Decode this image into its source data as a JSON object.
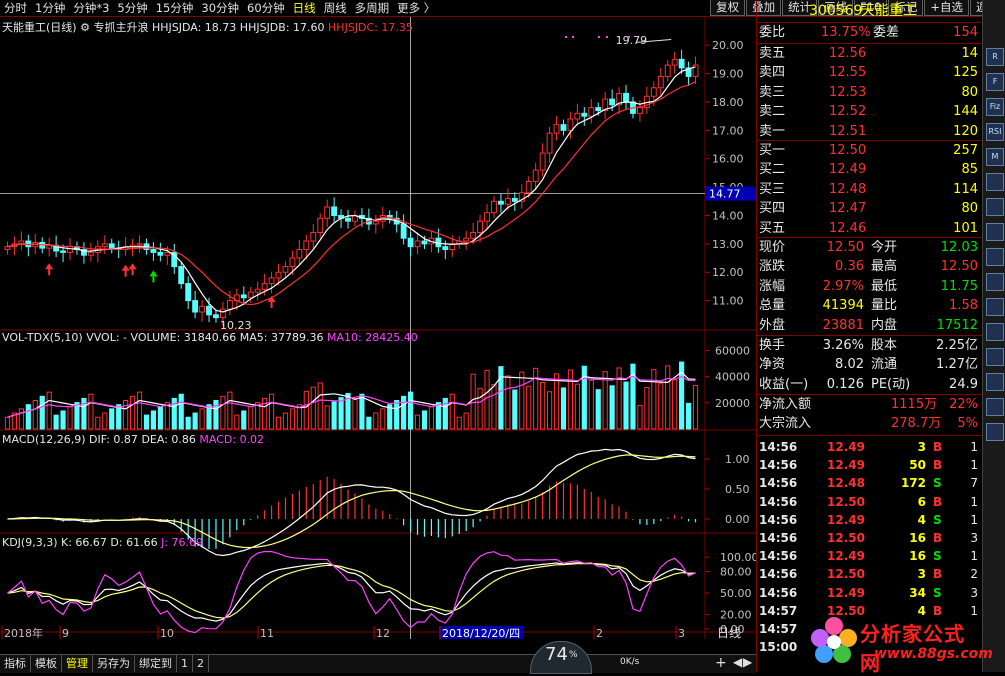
{
  "toolbar": {
    "periods": [
      "分时",
      "1分钟",
      "分钟*3",
      "5分钟",
      "15分钟",
      "30分钟",
      "60分钟",
      "日线",
      "周线",
      "多周期",
      "更多 〉"
    ],
    "active_period": "日线",
    "tools": [
      "复权",
      "叠加",
      "统计",
      "画线",
      "F10",
      "标记",
      "+自选",
      "返回"
    ]
  },
  "main_legend": {
    "name": "天能重工(日线)",
    "indicator": "专抓主升浪",
    "a": "HHJSJDA: 18.73",
    "b": "HHJSJDB: 17.60",
    "c": "HHJSJDC: 17.35"
  },
  "price_axis": [
    "20.00",
    "19.00",
    "18.00",
    "17.00",
    "16.00",
    "15.00",
    "14.00",
    "13.00",
    "12.00",
    "11.00"
  ],
  "crosshair_price": "14.77",
  "annotations": {
    "high": "19.79",
    "low": "10.23"
  },
  "vol_legend": {
    "name": "VOL-TDX(5,10)",
    "wol": "VVOL: -",
    "volume": "VOLUME: 31840.66",
    "ma5": "MA5: 37789.36",
    "ma10": "MA10: 28425.40"
  },
  "vol_axis": [
    "60000",
    "40000",
    "20000"
  ],
  "macd_legend": {
    "name": "MACD(12,26,9)",
    "dif": "DIF: 0.87",
    "dea": "DEA: 0.86",
    "macd": "MACD: 0.02"
  },
  "macd_axis": [
    "1.00",
    "0.50",
    "0.00"
  ],
  "kdj_legend": {
    "name": "KDJ(9,3,3)",
    "k": "K: 66.67",
    "d": "D: 61.66",
    "j": "J: 76.69"
  },
  "kdj_axis": [
    "100.00",
    "80.00",
    "50.00",
    "20.00",
    "0.00"
  ],
  "time_axis": [
    "2018年",
    "9",
    "10",
    "11",
    "12",
    "2018/12/20/四",
    "2",
    "3"
  ],
  "period_label": "日线",
  "bottom_tabs": [
    "指标",
    "模板",
    "管理",
    "另存为",
    "绑定到",
    "1",
    "2"
  ],
  "speed": {
    "value": "74",
    "unit": "%",
    "rate": "0K/s"
  },
  "quote": {
    "code": "300569",
    "name": "天能重工",
    "weibi_label": "委比",
    "weibi": "13.75%",
    "weicha_label": "委差",
    "weicha": "154",
    "asks": [
      {
        "label": "卖五",
        "price": "12.56",
        "vol": "14"
      },
      {
        "label": "卖四",
        "price": "12.55",
        "vol": "125"
      },
      {
        "label": "卖三",
        "price": "12.53",
        "vol": "80"
      },
      {
        "label": "卖二",
        "price": "12.52",
        "vol": "144"
      },
      {
        "label": "卖一",
        "price": "12.51",
        "vol": "120"
      }
    ],
    "bids": [
      {
        "label": "买一",
        "price": "12.50",
        "vol": "257"
      },
      {
        "label": "买二",
        "price": "12.49",
        "vol": "85"
      },
      {
        "label": "买三",
        "price": "12.48",
        "vol": "114"
      },
      {
        "label": "买四",
        "price": "12.47",
        "vol": "80"
      },
      {
        "label": "买五",
        "price": "12.46",
        "vol": "101"
      }
    ],
    "stats": [
      {
        "l1": "现价",
        "v1": "12.50",
        "c1": "red",
        "l2": "今开",
        "v2": "12.03",
        "c2": "grn"
      },
      {
        "l1": "涨跌",
        "v1": "0.36",
        "c1": "red",
        "l2": "最高",
        "v2": "12.50",
        "c2": "red"
      },
      {
        "l1": "涨幅",
        "v1": "2.97%",
        "c1": "red",
        "l2": "最低",
        "v2": "11.75",
        "c2": "grn"
      },
      {
        "l1": "总量",
        "v1": "41394",
        "c1": "yel",
        "l2": "量比",
        "v2": "1.58",
        "c2": "red"
      },
      {
        "l1": "外盘",
        "v1": "23881",
        "c1": "red",
        "l2": "内盘",
        "v2": "17512",
        "c2": "grn"
      }
    ],
    "stats2": [
      {
        "l1": "换手",
        "v1": "3.26%",
        "l2": "股本",
        "v2": "2.25亿"
      },
      {
        "l1": "净资",
        "v1": "8.02",
        "l2": "流通",
        "v2": "1.27亿"
      },
      {
        "l1": "收益(一)",
        "v1": "0.126",
        "l2": "PE(动)",
        "v2": "24.9"
      }
    ],
    "flows": [
      {
        "l": "净流入额",
        "v": "1115万",
        "p": "22%"
      },
      {
        "l": "大宗流入",
        "v": "278.7万",
        "p": "5%"
      }
    ]
  },
  "ticks": [
    {
      "t": "14:56",
      "p": "12.49",
      "v": "3",
      "s": "B",
      "n": "1"
    },
    {
      "t": "14:56",
      "p": "12.49",
      "v": "50",
      "s": "B",
      "n": "1"
    },
    {
      "t": "14:56",
      "p": "12.48",
      "v": "172",
      "s": "S",
      "n": "7"
    },
    {
      "t": "14:56",
      "p": "12.50",
      "v": "6",
      "s": "B",
      "n": "1"
    },
    {
      "t": "14:56",
      "p": "12.49",
      "v": "4",
      "s": "S",
      "n": "1"
    },
    {
      "t": "14:56",
      "p": "12.50",
      "v": "16",
      "s": "B",
      "n": "3"
    },
    {
      "t": "14:56",
      "p": "12.49",
      "v": "16",
      "s": "S",
      "n": "1"
    },
    {
      "t": "14:56",
      "p": "12.50",
      "v": "3",
      "s": "B",
      "n": "2"
    },
    {
      "t": "14:56",
      "p": "12.49",
      "v": "34",
      "s": "S",
      "n": "3"
    },
    {
      "t": "14:57",
      "p": "12.50",
      "v": "4",
      "s": "B",
      "n": "1"
    },
    {
      "t": "14:57",
      "p": "",
      "v": "",
      "s": "",
      "n": ""
    },
    {
      "t": "15:00",
      "p": "",
      "v": "",
      "s": "",
      "n": ""
    }
  ],
  "watermark": {
    "name": "分析家公式网",
    "url": "www.88gs.com"
  },
  "icon_buttons": [
    "R",
    "F",
    "Fiz",
    "RSI",
    "M"
  ],
  "colors": {
    "up": "#ff3030",
    "down": "#54ffff",
    "frame": "#800000",
    "axis": "#c00000"
  },
  "chart_data": {
    "type": "candlestick",
    "ylim": [
      10.0,
      20.5
    ],
    "closes": [
      12.9,
      13.0,
      13.1,
      12.9,
      13.05,
      12.85,
      12.95,
      12.75,
      12.7,
      12.9,
      12.8,
      12.6,
      12.7,
      12.9,
      13.0,
      12.85,
      12.8,
      12.9,
      12.95,
      13.0,
      12.8,
      12.7,
      12.6,
      12.7,
      12.2,
      11.6,
      11.0,
      10.6,
      10.8,
      10.5,
      10.4,
      10.7,
      11.0,
      11.2,
      11.1,
      11.3,
      11.4,
      11.6,
      11.8,
      12.0,
      12.2,
      12.5,
      12.8,
      13.1,
      13.4,
      13.9,
      14.3,
      14.0,
      13.9,
      13.8,
      14.0,
      13.9,
      13.7,
      13.8,
      14.0,
      13.9,
      13.7,
      13.2,
      12.9,
      13.1,
      13.0,
      13.2,
      12.9,
      12.8,
      13.0,
      13.1,
      13.2,
      13.4,
      13.8,
      14.1,
      14.5,
      14.4,
      14.6,
      14.5,
      14.8,
      15.2,
      15.6,
      16.2,
      16.9,
      17.2,
      17.0,
      17.4,
      17.6,
      17.5,
      17.8,
      17.7,
      18.1,
      17.9,
      18.3,
      18.0,
      17.6,
      17.8,
      18.2,
      18.5,
      18.9,
      19.3,
      19.5,
      19.2,
      18.9,
      19.3
    ]
  }
}
